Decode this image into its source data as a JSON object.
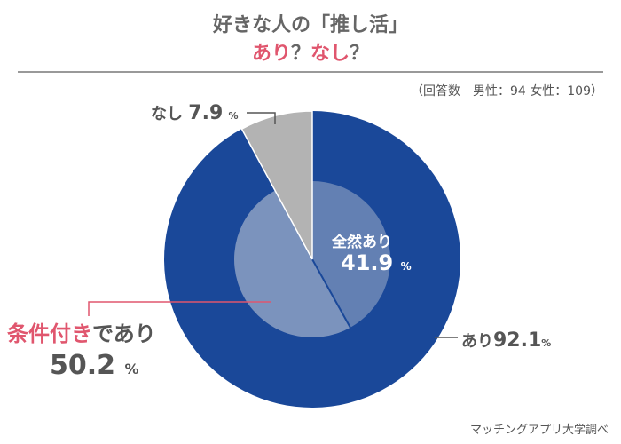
{
  "title": {
    "line1": "好きな人の「推し活」",
    "line2_a": "あり",
    "line2_b": "？",
    "line2_c": "なし",
    "line2_d": "？"
  },
  "sample_note": "（回答数　男性：94 女性：109）",
  "credit": "マッチングアプリ大学調べ",
  "chart_data": {
    "type": "pie",
    "title": "好きな人の「推し活」あり？なし？",
    "outer": [
      {
        "name": "あり",
        "value": 92.1,
        "color": "#1a4899"
      },
      {
        "name": "なし",
        "value": 7.9,
        "color": "#b3b3b3"
      }
    ],
    "inner": [
      {
        "name": "全然あり",
        "value": 41.9,
        "color": "#6380b3"
      },
      {
        "name": "条件付きであり",
        "value": 50.2,
        "color": "#7b93bd"
      }
    ],
    "unit": "%",
    "accent_color": "#e0566e"
  },
  "labels": {
    "nashi": {
      "name": "なし",
      "value": "7.9",
      "unit": "%"
    },
    "ari": {
      "name": "あり",
      "value": "92.1",
      "unit": "%"
    },
    "zenzen": {
      "name": "全然あり",
      "value": "41.9",
      "unit": "%"
    },
    "jouken": {
      "name_a": "条件付き",
      "name_b": "であり",
      "value": "50.2",
      "unit": "%"
    }
  }
}
